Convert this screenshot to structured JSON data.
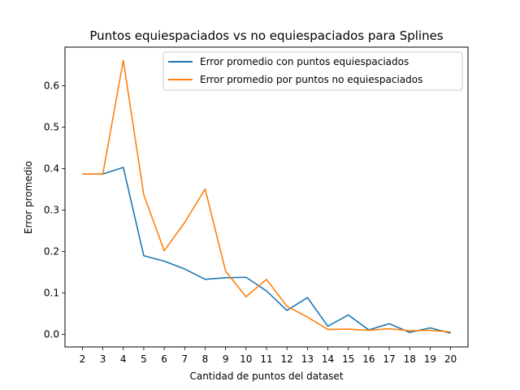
{
  "chart_data": {
    "type": "line",
    "title": "Puntos equiespaciados vs no equiespaciados para Splines",
    "xlabel": "Cantidad de puntos del dataset",
    "ylabel": "Error promedio",
    "x": [
      2,
      3,
      4,
      5,
      6,
      7,
      8,
      9,
      10,
      11,
      12,
      13,
      14,
      15,
      16,
      17,
      18,
      19,
      20
    ],
    "xticks": [
      "2",
      "3",
      "4",
      "5",
      "6",
      "7",
      "8",
      "9",
      "10",
      "11",
      "12",
      "13",
      "14",
      "15",
      "16",
      "17",
      "18",
      "19",
      "20"
    ],
    "yticks": [
      "0.0",
      "0.1",
      "0.2",
      "0.3",
      "0.4",
      "0.5",
      "0.6"
    ],
    "xlim": [
      1.15,
      20.85
    ],
    "ylim": [
      -0.03,
      0.693
    ],
    "grid": false,
    "legend_position": "top-right",
    "series": [
      {
        "name": "Error promedio con puntos equiespaciados",
        "color": "#1f77b4",
        "values": [
          0.387,
          0.387,
          0.403,
          0.19,
          0.177,
          0.158,
          0.133,
          0.137,
          0.138,
          0.105,
          0.058,
          0.089,
          0.02,
          0.047,
          0.011,
          0.026,
          0.005,
          0.016,
          0.003
        ]
      },
      {
        "name": "Error promedio por puntos no equiespaciados",
        "color": "#ff7f0e",
        "values": [
          0.387,
          0.387,
          0.661,
          0.337,
          0.202,
          0.27,
          0.351,
          0.153,
          0.091,
          0.133,
          0.068,
          0.042,
          0.012,
          0.013,
          0.01,
          0.014,
          0.009,
          0.01,
          0.006
        ]
      }
    ]
  }
}
